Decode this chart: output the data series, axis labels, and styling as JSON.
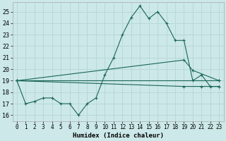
{
  "title": "",
  "xlabel": "Humidex (Indice chaleur)",
  "background_color": "#cce8e8",
  "grid_color": "#b8d8d8",
  "line_color": "#1a6655",
  "xlim": [
    -0.5,
    23.5
  ],
  "ylim": [
    15.5,
    25.8
  ],
  "yticks": [
    16,
    17,
    18,
    19,
    20,
    21,
    22,
    23,
    24,
    25
  ],
  "xticks": [
    0,
    1,
    2,
    3,
    4,
    5,
    6,
    7,
    8,
    9,
    10,
    11,
    12,
    13,
    14,
    15,
    16,
    17,
    18,
    19,
    20,
    21,
    22,
    23
  ],
  "line1_x": [
    0,
    1,
    2,
    3,
    4,
    5,
    6,
    7,
    8,
    9,
    10,
    11,
    12,
    13,
    14,
    15,
    16,
    17,
    18,
    19,
    20,
    21,
    22,
    23
  ],
  "line1_y": [
    19.0,
    17.0,
    17.2,
    17.5,
    17.5,
    17.0,
    17.0,
    16.0,
    17.0,
    17.5,
    19.5,
    21.0,
    23.0,
    24.5,
    25.5,
    24.4,
    25.0,
    24.0,
    22.5,
    22.5,
    19.0,
    19.5,
    18.5,
    18.5
  ],
  "line2_x": [
    0,
    23
  ],
  "line2_y": [
    19.0,
    19.0
  ],
  "line3_x": [
    0,
    19,
    20,
    23
  ],
  "line3_y": [
    19.0,
    20.8,
    19.9,
    19.0
  ],
  "line4_x": [
    0,
    19,
    21,
    23
  ],
  "line4_y": [
    19.0,
    18.5,
    18.5,
    18.5
  ]
}
